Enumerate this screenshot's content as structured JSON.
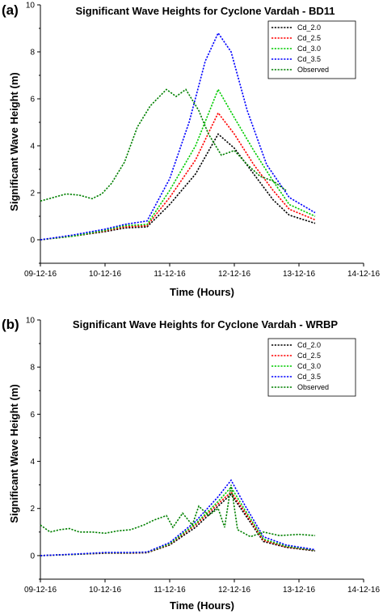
{
  "chart_data": [
    {
      "type": "line",
      "panel_label": "(a)",
      "title": "Significant Wave Heights for Cyclone Vardah - BD11",
      "xlabel": "Time (Hours)",
      "ylabel": "Significant Wave Height (m)",
      "x_tick_labels": [
        "09-12-16",
        "10-12-16",
        "11-12-16",
        "12-12-16",
        "13-12-16",
        "14-12-16"
      ],
      "xlim": [
        0,
        5
      ],
      "ylim": [
        -1,
        10
      ],
      "y_ticks": [
        0,
        2,
        4,
        6,
        8,
        10
      ],
      "legend_position": "top-right",
      "grid": false,
      "series": [
        {
          "name": "Cd_2.0",
          "color": "#000000",
          "x": [
            0,
            0.5,
            1,
            1.3,
            1.65,
            2,
            2.4,
            2.75,
            3.0,
            3.3,
            3.6,
            3.85,
            4.25
          ],
          "y": [
            0.0,
            0.15,
            0.35,
            0.5,
            0.55,
            1.5,
            2.8,
            4.5,
            3.9,
            2.8,
            1.7,
            1.05,
            0.7
          ]
        },
        {
          "name": "Cd_2.5",
          "color": "#ff0000",
          "x": [
            0,
            0.5,
            1,
            1.3,
            1.65,
            2,
            2.4,
            2.75,
            3.0,
            3.3,
            3.6,
            3.85,
            4.25
          ],
          "y": [
            0.0,
            0.15,
            0.38,
            0.55,
            0.6,
            1.8,
            3.4,
            5.4,
            4.5,
            3.2,
            2.1,
            1.3,
            0.85
          ]
        },
        {
          "name": "Cd_3.0",
          "color": "#00cc00",
          "x": [
            0,
            0.5,
            1,
            1.3,
            1.65,
            2,
            2.4,
            2.75,
            3.0,
            3.3,
            3.6,
            3.85,
            4.25
          ],
          "y": [
            0.0,
            0.15,
            0.4,
            0.6,
            0.65,
            2.1,
            4.0,
            6.4,
            5.2,
            3.8,
            2.5,
            1.5,
            1.0
          ]
        },
        {
          "name": "Cd_3.5",
          "color": "#0000ff",
          "x": [
            0,
            0.5,
            1,
            1.3,
            1.65,
            2,
            2.3,
            2.55,
            2.75,
            2.95,
            3.2,
            3.5,
            3.85,
            4.25
          ],
          "y": [
            0.0,
            0.2,
            0.45,
            0.65,
            0.8,
            2.6,
            5.0,
            7.6,
            8.8,
            8.0,
            5.5,
            3.2,
            1.8,
            1.15
          ]
        },
        {
          "name": "Observed",
          "color": "#008000",
          "x": [
            0,
            0.2,
            0.4,
            0.6,
            0.8,
            0.95,
            1.1,
            1.3,
            1.5,
            1.7,
            1.95,
            2.1,
            2.25,
            2.45,
            2.6,
            2.8,
            3.0,
            3.2,
            3.4,
            3.6,
            3.8
          ],
          "y": [
            1.65,
            1.8,
            1.95,
            1.9,
            1.75,
            1.95,
            2.4,
            3.3,
            4.8,
            5.7,
            6.4,
            6.1,
            6.4,
            5.5,
            4.5,
            3.6,
            3.8,
            3.2,
            2.7,
            2.5,
            2.1
          ]
        }
      ]
    },
    {
      "type": "line",
      "panel_label": "(b)",
      "title": "Significant Wave Heights for Cyclone Vardah - WRBP",
      "xlabel": "Time (Hours)",
      "ylabel": "Significant Wave Height (m)",
      "x_tick_labels": [
        "09-12-16",
        "10-12-16",
        "11-12-16",
        "12-12-16",
        "13-12-16",
        "14-12-16"
      ],
      "xlim": [
        0,
        5
      ],
      "ylim": [
        -1,
        10
      ],
      "y_ticks": [
        0,
        2,
        4,
        6,
        8,
        10
      ],
      "legend_position": "top-right",
      "grid": false,
      "series": [
        {
          "name": "Cd_2.0",
          "color": "#000000",
          "x": [
            0,
            0.5,
            1,
            1.4,
            1.65,
            2,
            2.4,
            2.75,
            2.95,
            3.15,
            3.45,
            3.8,
            4.25
          ],
          "y": [
            0.0,
            0.05,
            0.1,
            0.1,
            0.12,
            0.45,
            1.2,
            2.1,
            2.6,
            1.8,
            0.6,
            0.35,
            0.2
          ]
        },
        {
          "name": "Cd_2.5",
          "color": "#ff0000",
          "x": [
            0,
            0.5,
            1,
            1.4,
            1.65,
            2,
            2.4,
            2.75,
            2.95,
            3.15,
            3.45,
            3.8,
            4.25
          ],
          "y": [
            0.0,
            0.05,
            0.11,
            0.11,
            0.13,
            0.48,
            1.3,
            2.2,
            2.7,
            1.9,
            0.65,
            0.37,
            0.22
          ]
        },
        {
          "name": "Cd_3.0",
          "color": "#00cc00",
          "x": [
            0,
            0.5,
            1,
            1.4,
            1.65,
            2,
            2.4,
            2.75,
            2.95,
            3.15,
            3.45,
            3.8,
            4.25
          ],
          "y": [
            0.0,
            0.05,
            0.12,
            0.12,
            0.14,
            0.5,
            1.35,
            2.3,
            2.9,
            2.0,
            0.7,
            0.4,
            0.23
          ]
        },
        {
          "name": "Cd_3.5",
          "color": "#0000ff",
          "x": [
            0,
            0.5,
            1,
            1.4,
            1.65,
            2,
            2.4,
            2.75,
            2.95,
            3.15,
            3.45,
            3.8,
            4.25
          ],
          "y": [
            0.0,
            0.06,
            0.13,
            0.13,
            0.15,
            0.55,
            1.45,
            2.5,
            3.2,
            2.2,
            0.8,
            0.45,
            0.25
          ]
        },
        {
          "name": "Observed",
          "color": "#008000",
          "x": [
            0,
            0.15,
            0.3,
            0.45,
            0.6,
            0.8,
            1.0,
            1.2,
            1.4,
            1.6,
            1.75,
            1.95,
            2.05,
            2.2,
            2.35,
            2.45,
            2.6,
            2.75,
            2.85,
            2.95,
            3.05,
            3.25,
            3.45,
            3.7,
            4.0,
            4.25
          ],
          "y": [
            1.3,
            1.0,
            1.1,
            1.15,
            1.0,
            1.0,
            0.95,
            1.05,
            1.1,
            1.3,
            1.5,
            1.7,
            1.2,
            1.8,
            1.3,
            2.1,
            1.7,
            2.0,
            1.2,
            3.0,
            1.1,
            0.8,
            1.0,
            0.85,
            0.9,
            0.85
          ]
        }
      ]
    }
  ]
}
